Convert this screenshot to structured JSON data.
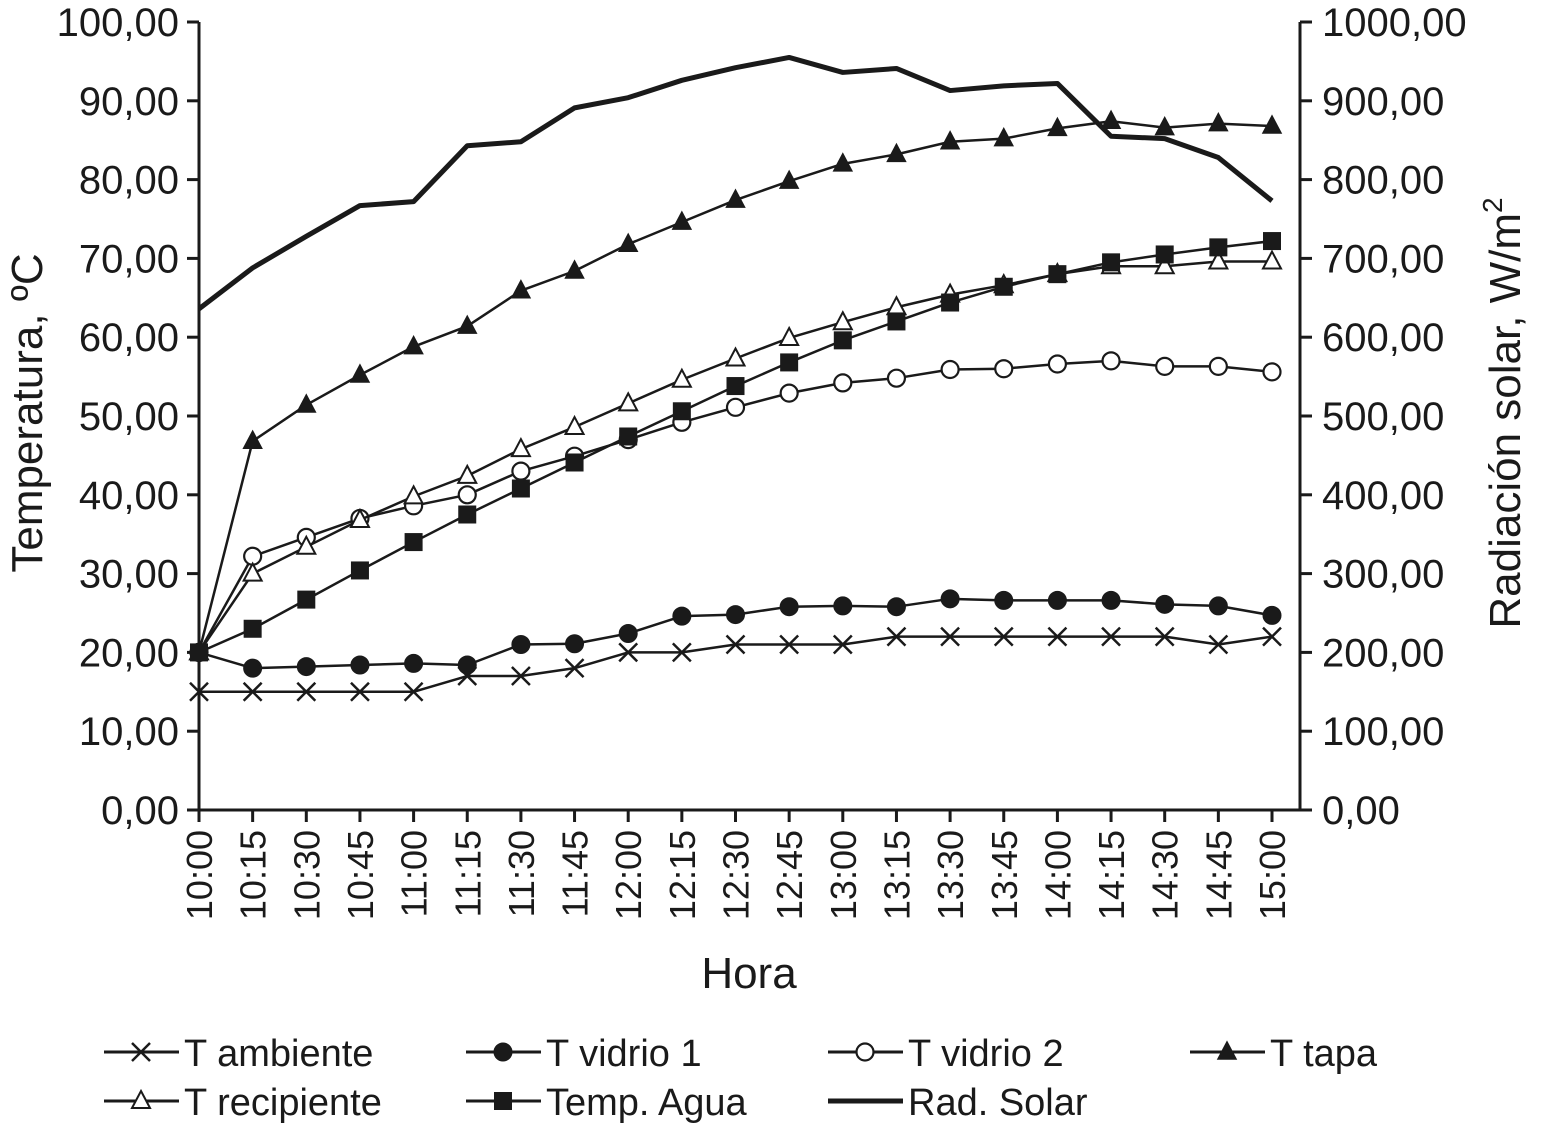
{
  "chart_data": {
    "type": "line",
    "x": [
      "10:00",
      "10:15",
      "10:30",
      "10:45",
      "11:00",
      "11:15",
      "11:30",
      "11:45",
      "12:00",
      "12:15",
      "12:30",
      "12:45",
      "13:00",
      "13:15",
      "13:30",
      "13:45",
      "14:00",
      "14:15",
      "14:30",
      "14:45",
      "15:00"
    ],
    "xlabel": "Hora",
    "ylabel": "Temperatura, ºC",
    "y2label": {
      "base": "Radiación solar, W/m",
      "sup": "2"
    },
    "ylim": [
      0,
      100
    ],
    "y2lim": [
      0,
      1000
    ],
    "yticks": [
      "0,00",
      "10,00",
      "20,00",
      "30,00",
      "40,00",
      "50,00",
      "60,00",
      "70,00",
      "80,00",
      "90,00",
      "100,00"
    ],
    "y2ticks": [
      "0,00",
      "100,00",
      "200,00",
      "300,00",
      "400,00",
      "500,00",
      "600,00",
      "700,00",
      "800,00",
      "900,00",
      "1000,00"
    ],
    "grid": false,
    "legend_position": "bottom",
    "series": [
      {
        "name": "T ambiente",
        "marker": "x",
        "axis": "left",
        "values": [
          15,
          15,
          15,
          15,
          15,
          17,
          17,
          18,
          20,
          20,
          21,
          21,
          21,
          22,
          22,
          22,
          22,
          22,
          22,
          21,
          22
        ]
      },
      {
        "name": "T vidrio 1",
        "marker": "filled-circle",
        "axis": "left",
        "values": [
          20,
          18,
          18.2,
          18.4,
          18.6,
          18.4,
          21,
          21.1,
          22.4,
          24.6,
          24.8,
          25.8,
          25.9,
          25.8,
          26.8,
          26.6,
          26.6,
          26.6,
          26.1,
          25.9,
          24.7
        ]
      },
      {
        "name": "T vidrio 2",
        "marker": "open-circle",
        "axis": "left",
        "values": [
          20,
          32.2,
          34.6,
          37,
          38.6,
          40,
          43,
          44.9,
          47,
          49.2,
          51.1,
          52.9,
          54.2,
          54.8,
          55.9,
          56,
          56.6,
          57,
          56.3,
          56.3,
          55.6
        ]
      },
      {
        "name": "T tapa",
        "marker": "filled-triangle",
        "axis": "left",
        "values": [
          20,
          46.8,
          51.4,
          55.2,
          58.8,
          61.4,
          65.9,
          68.4,
          71.8,
          74.6,
          77.4,
          79.8,
          82,
          83.2,
          84.8,
          85.2,
          86.5,
          87.4,
          86.6,
          87.1,
          86.8
        ]
      },
      {
        "name": "T recipiente",
        "marker": "open-triangle",
        "axis": "left",
        "values": [
          20,
          30,
          33.4,
          36.8,
          39.8,
          42.4,
          45.8,
          48.6,
          51.6,
          54.6,
          57.3,
          59.9,
          61.9,
          63.8,
          65.4,
          66.6,
          68,
          69,
          69,
          69.6,
          69.6
        ]
      },
      {
        "name": "Temp. Agua",
        "marker": "filled-square",
        "axis": "left",
        "values": [
          20,
          23,
          26.7,
          30.4,
          34,
          37.5,
          40.8,
          44.1,
          47.4,
          50.6,
          53.8,
          56.8,
          59.6,
          62,
          64.4,
          66.4,
          68,
          69.5,
          70.5,
          71.4,
          72.2
        ]
      },
      {
        "name": "Rad. Solar",
        "marker": "none",
        "axis": "right",
        "values": [
          636,
          688,
          728,
          767,
          772,
          843,
          848,
          891,
          904,
          926,
          942,
          955,
          936,
          941,
          913,
          919,
          922,
          855,
          852,
          828,
          773
        ]
      }
    ]
  }
}
